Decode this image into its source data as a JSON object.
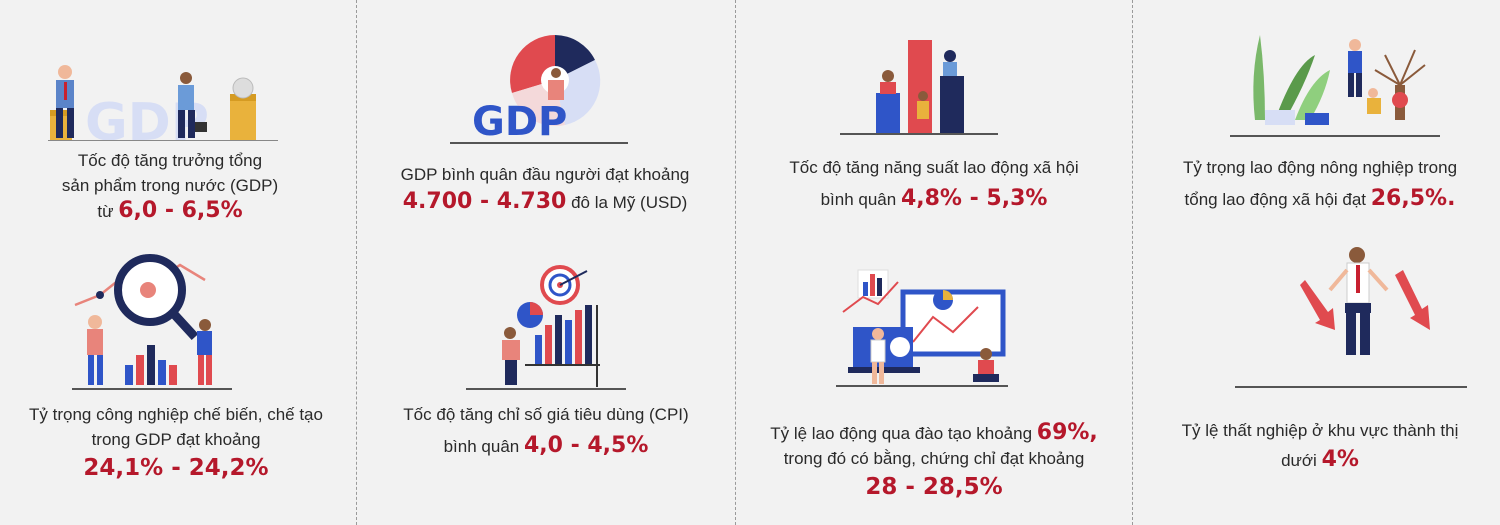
{
  "panels": [
    {
      "illus_label": "GDP",
      "text_line1": "Tốc độ tăng trưởng tổng",
      "text_line2": "sản phẩm trong nước (GDP)",
      "prefix": "từ ",
      "highlight": "6,0 - 6,5%"
    },
    {
      "illus_label": "GDP",
      "text_line1": "GDP bình quân đầu người đạt khoảng",
      "highlight": "4.700 - 4.730",
      "suffix": " đô la Mỹ (USD)"
    },
    {
      "text_line1": "Tốc độ tăng năng suất lao động xã hội",
      "prefix": "bình quân ",
      "highlight": "4,8% - 5,3%"
    },
    {
      "text_line1": "Tỷ trọng lao động nông nghiệp trong",
      "prefix": "tổng lao động xã hội đạt ",
      "highlight": "26,5%."
    },
    {
      "text_line1": "Tỷ trọng công nghiệp chế biến, chế tạo",
      "text_line2": "trong GDP đạt khoảng",
      "highlight": "24,1% - 24,2%"
    },
    {
      "text_line1": "Tốc độ tăng chỉ số giá tiêu dùng (CPI)",
      "prefix": "bình quân ",
      "highlight": "4,0 - 4,5%"
    },
    {
      "prefix": "Tỷ lệ lao động qua đào tạo khoảng ",
      "highlight_inline": "69%,",
      "text_line2": "trong đó có bằng, chứng chỉ đạt khoảng",
      "highlight": "28 - 28,5%"
    },
    {
      "text_line1": "Tỷ lệ thất nghiệp ở khu vực thành thị",
      "prefix": "dưới ",
      "highlight": "4%"
    }
  ],
  "colors": {
    "accent_red": "#b5182b",
    "navy": "#1f2a5c",
    "blue": "#2f55c8",
    "light_blue": "#cfd9f5",
    "salmon": "#e8847b",
    "gold": "#e9b23c",
    "green": "#5a9a4b"
  }
}
